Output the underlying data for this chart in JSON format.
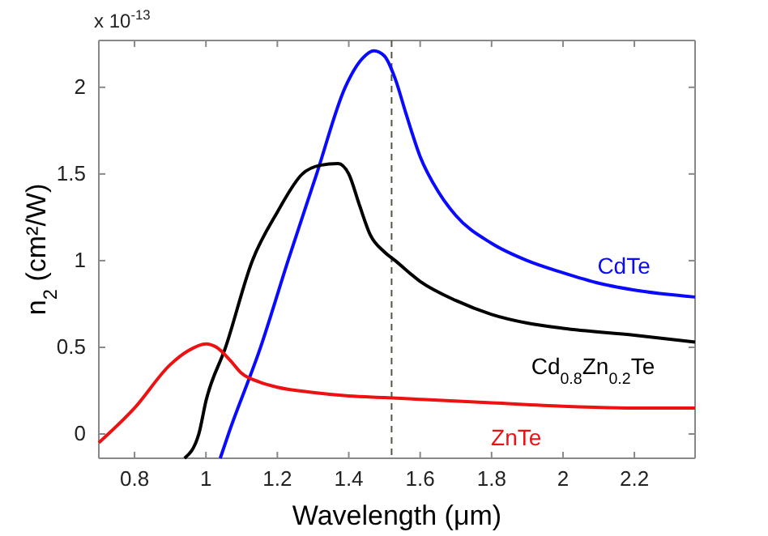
{
  "chart_data": {
    "type": "line",
    "xlabel": "Wavelength (μm)",
    "ylabel": "n$_{2}$ (cm²/W)",
    "annotations": [
      "x 10$^{-13}$"
    ],
    "xlim": [
      0.7,
      2.37
    ],
    "ylim": [
      -0.14,
      2.27
    ],
    "xticks": [
      0.8,
      1,
      1.2,
      1.4,
      1.6,
      1.8,
      2,
      2.2
    ],
    "yticks": [
      0,
      0.5,
      1,
      1.5,
      2
    ],
    "grid": false,
    "legend": false,
    "ref_lines": [
      {
        "axis": "x",
        "value": 1.52,
        "label": null,
        "color": "#555544",
        "line_style": "dashed"
      }
    ],
    "series": [
      {
        "name": "CdTe",
        "color": "#0a0aff",
        "x": [
          1.04,
          1.063,
          1.153,
          1.23,
          1.31,
          1.39,
          1.44,
          1.47,
          1.5,
          1.53,
          1.56,
          1.6,
          1.65,
          1.7,
          1.8,
          1.9,
          2.0,
          2.1,
          2.2,
          2.37
        ],
        "values": [
          -0.14,
          0,
          0.5,
          1.0,
          1.5,
          2.0,
          2.17,
          2.21,
          2.18,
          2.05,
          1.85,
          1.6,
          1.4,
          1.26,
          1.1,
          1.0,
          0.93,
          0.87,
          0.83,
          0.79
        ]
      },
      {
        "name": "Cd$_{0.8}$Zn$_{0.2}$Te",
        "color": "#000000",
        "x": [
          0.94,
          0.98,
          1.0,
          1.055,
          1.13,
          1.2,
          1.27,
          1.32,
          1.37,
          1.4,
          1.43,
          1.46,
          1.5,
          1.53,
          1.6,
          1.7,
          1.8,
          1.9,
          2.0,
          2.2,
          2.37
        ],
        "values": [
          -0.14,
          0,
          0.19,
          0.5,
          1.0,
          1.28,
          1.5,
          1.55,
          1.56,
          1.5,
          1.32,
          1.15,
          1.05,
          1.0,
          0.88,
          0.77,
          0.69,
          0.64,
          0.61,
          0.57,
          0.53
        ]
      },
      {
        "name": "ZnTe",
        "color": "#ee1111",
        "x": [
          0.7,
          0.8,
          0.9,
          0.95,
          1.0,
          1.03,
          1.07,
          1.1,
          1.15,
          1.2,
          1.3,
          1.4,
          1.5,
          1.6,
          1.8,
          2.0,
          2.2,
          2.37
        ],
        "values": [
          -0.05,
          0.15,
          0.4,
          0.48,
          0.52,
          0.5,
          0.42,
          0.35,
          0.3,
          0.27,
          0.24,
          0.22,
          0.21,
          0.2,
          0.18,
          0.16,
          0.15,
          0.15
        ]
      }
    ]
  }
}
